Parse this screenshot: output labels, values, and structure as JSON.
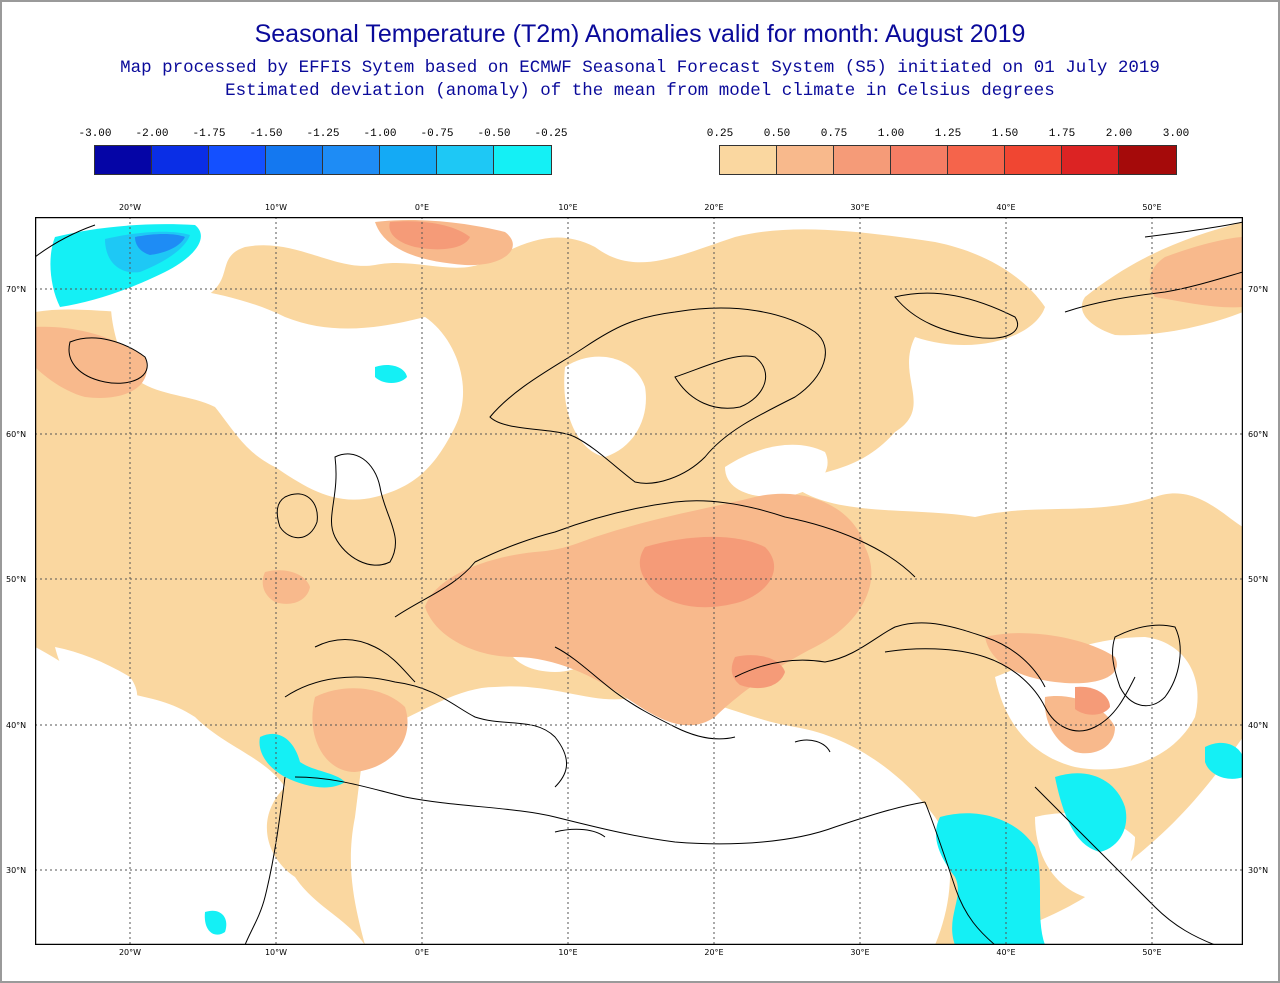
{
  "header": {
    "title": "Seasonal Temperature (T2m) Anomalies valid for month: August 2019",
    "subtitle1": "Map processed by EFFIS Sytem based on ECMWF Seasonal Forecast System (S5) initiated on 01 July 2019",
    "subtitle2": "Estimated deviation (anomaly) of the mean from model climate in Celsius degrees"
  },
  "legend": {
    "negative_labels": [
      "-3.00",
      "-2.00",
      "-1.75",
      "-1.50",
      "-1.25",
      "-1.00",
      "-0.75",
      "-0.50",
      "-0.25"
    ],
    "negative_colors": [
      "#0505a6",
      "#0a2ee6",
      "#1450ff",
      "#1478f0",
      "#1e8cf5",
      "#14aaf5",
      "#1ec8f5",
      "#14f0f5"
    ],
    "positive_labels": [
      "0.25",
      "0.50",
      "0.75",
      "1.00",
      "1.25",
      "1.50",
      "1.75",
      "2.00",
      "3.00"
    ],
    "positive_colors": [
      "#fad7a0",
      "#f8b98c",
      "#f59b78",
      "#f57d64",
      "#f5644b",
      "#f04632",
      "#dc2323",
      "#a50a0a"
    ]
  },
  "map": {
    "lon_labels": [
      "20°W",
      "10°W",
      "0°E",
      "10°E",
      "20°E",
      "30°E",
      "40°E",
      "50°E"
    ],
    "lat_labels": [
      "70°N",
      "60°N",
      "50°N",
      "40°N",
      "30°N"
    ]
  }
}
